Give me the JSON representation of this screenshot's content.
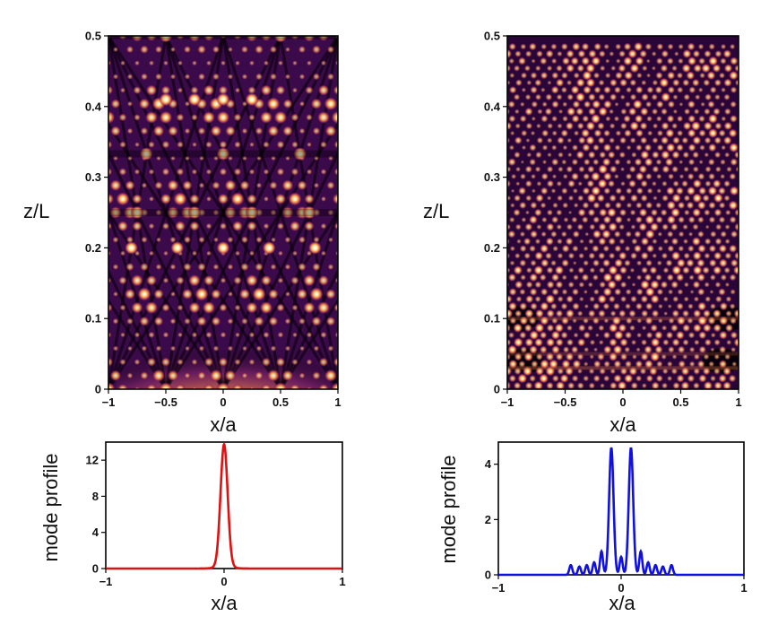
{
  "chart_data": [
    {
      "type": "heatmap",
      "panel": "top-left",
      "title": "",
      "xlabel": "x/a",
      "ylabel": "z/L",
      "xlim": [
        -1,
        1
      ],
      "ylim": [
        0,
        0.5
      ],
      "xticks": [
        -1,
        -0.5,
        0,
        0.5,
        1
      ],
      "xtick_labels": [
        "−1",
        "−0.5",
        "0",
        "0.5",
        "1"
      ],
      "yticks": [
        0,
        0.1,
        0.2,
        0.3,
        0.4,
        0.5
      ],
      "ytick_labels": [
        "0",
        "0.1",
        "0.2",
        "0.3",
        "0.4",
        "0.5"
      ],
      "colormap": [
        "#000000",
        "#3b0a4a",
        "#8a2a6a",
        "#d5546a",
        "#f28a3c",
        "#fbd37a",
        "#ffffff"
      ],
      "pattern": "regular"
    },
    {
      "type": "heatmap",
      "panel": "top-right",
      "title": "",
      "xlabel": "x/a",
      "ylabel": "z/L",
      "xlim": [
        -1,
        1
      ],
      "ylim": [
        0,
        0.5
      ],
      "xticks": [
        -1,
        -0.5,
        0,
        0.5,
        1
      ],
      "xtick_labels": [
        "−1",
        "−0.5",
        "0",
        "0.5",
        "1"
      ],
      "yticks": [
        0,
        0.1,
        0.2,
        0.3,
        0.4,
        0.5
      ],
      "ytick_labels": [
        "0",
        "0.1",
        "0.2",
        "0.3",
        "0.4",
        "0.5"
      ],
      "colormap": [
        "#000000",
        "#3b0a4a",
        "#8a2a6a",
        "#d5546a",
        "#f28a3c",
        "#fbd37a",
        "#ffffff"
      ],
      "pattern": "irregular"
    },
    {
      "type": "line",
      "panel": "bottom-left",
      "xlabel": "x/a",
      "ylabel": "mode profile",
      "xlim": [
        -1,
        1
      ],
      "ylim": [
        0,
        14
      ],
      "xticks": [
        -1,
        0,
        1
      ],
      "xtick_labels": [
        "−1",
        "0",
        "1"
      ],
      "yticks": [
        0,
        4,
        8,
        12
      ],
      "ytick_labels": [
        "0",
        "4",
        "8",
        "12"
      ],
      "color": "#e01010",
      "series": [
        {
          "name": "mode profile",
          "peaks": [
            {
              "x": 0,
              "y": 13.5,
              "width": 0.03
            }
          ]
        }
      ]
    },
    {
      "type": "line",
      "panel": "bottom-right",
      "xlabel": "x/a",
      "ylabel": "mode profile",
      "xlim": [
        -1,
        1
      ],
      "ylim": [
        0,
        4.8
      ],
      "xticks": [
        -1,
        0,
        1
      ],
      "xtick_labels": [
        "−1",
        "0",
        "1"
      ],
      "yticks": [
        0,
        2,
        4
      ],
      "ytick_labels": [
        "0",
        "2",
        "4"
      ],
      "color": "#1010e0",
      "series": [
        {
          "name": "mode profile",
          "peaks": [
            {
              "x": -0.41,
              "y": 0.35
            },
            {
              "x": -0.34,
              "y": 0.3
            },
            {
              "x": -0.28,
              "y": 0.35
            },
            {
              "x": -0.22,
              "y": 0.45
            },
            {
              "x": -0.16,
              "y": 0.85
            },
            {
              "x": -0.08,
              "y": 4.6
            },
            {
              "x": 0.0,
              "y": 0.65
            },
            {
              "x": 0.08,
              "y": 4.6
            },
            {
              "x": 0.16,
              "y": 0.85
            },
            {
              "x": 0.22,
              "y": 0.45
            },
            {
              "x": 0.28,
              "y": 0.35
            },
            {
              "x": 0.34,
              "y": 0.3
            },
            {
              "x": 0.41,
              "y": 0.35
            }
          ]
        }
      ]
    }
  ]
}
